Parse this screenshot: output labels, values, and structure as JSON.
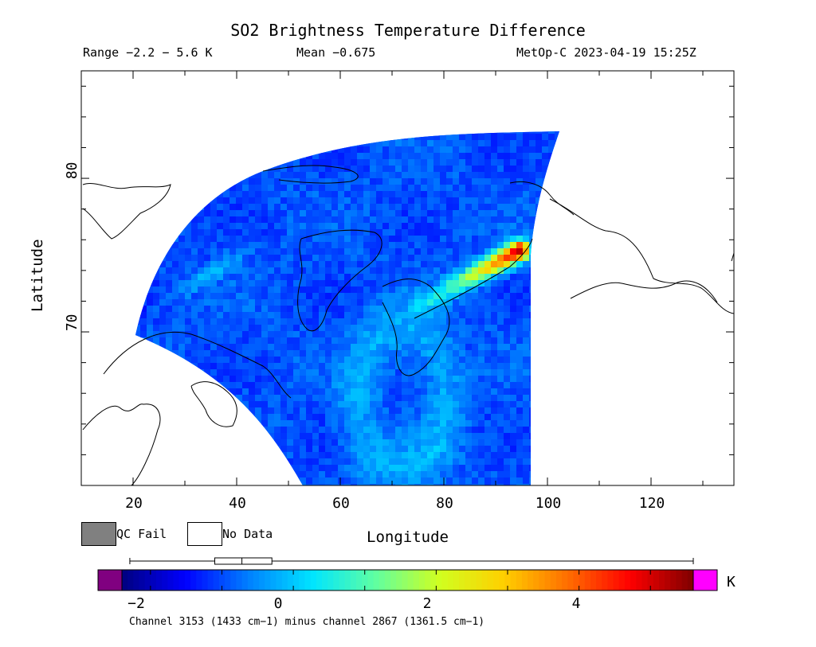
{
  "header": {
    "title": "SO2 Brightness Temperature Difference",
    "range_text": "Range −2.2 − 5.6 K",
    "mean_text": "Mean −0.675",
    "satellite_text": "MetOp-C 2023-04-19 15:25Z"
  },
  "chart_data": {
    "type": "heatmap",
    "title": "SO2 Brightness Temperature Difference",
    "xlabel": "Longitude",
    "ylabel": "Latitude",
    "xlim": [
      10,
      136
    ],
    "ylim": [
      60,
      87
    ],
    "x_ticks": [
      "20",
      "40",
      "60",
      "80",
      "100",
      "120"
    ],
    "y_ticks": [
      "70",
      "80"
    ],
    "x_tick_values": [
      20,
      40,
      60,
      80,
      100,
      120
    ],
    "y_tick_values": [
      70,
      80
    ],
    "value_range_K": [
      -2.2,
      5.6
    ],
    "mean_K": -0.675,
    "plume": {
      "description": "elevated SO2 signal",
      "lon_range": [
        75,
        94
      ],
      "lat_range": [
        72,
        75.5
      ],
      "peak_value_K": 5.0
    },
    "colorbar": {
      "unit": "K",
      "ticks": [
        "−2",
        "0",
        "2",
        "4"
      ],
      "tick_values": [
        -2,
        0,
        2,
        4
      ],
      "min": -2.4,
      "max": 5.6,
      "stats_whisker": [
        -2.2,
        5.6
      ],
      "stats_box": [
        -1.1,
        -0.3
      ],
      "stats_median": -0.72,
      "colors": [
        "#00007f",
        "#0000ff",
        "#0080ff",
        "#00e5ff",
        "#60ffa0",
        "#d0ff20",
        "#ffd000",
        "#ff7000",
        "#ff0000",
        "#7f0000"
      ],
      "under_color": "#800080",
      "over_color": "#ff00ff"
    },
    "legend": [
      {
        "label": "QC Fail",
        "color": "#808080"
      },
      {
        "label": "No Data",
        "color": "#ffffff"
      }
    ],
    "caption": "Channel 3153 (1433 cm−1) minus channel 2867 (1361.5 cm−1)"
  }
}
